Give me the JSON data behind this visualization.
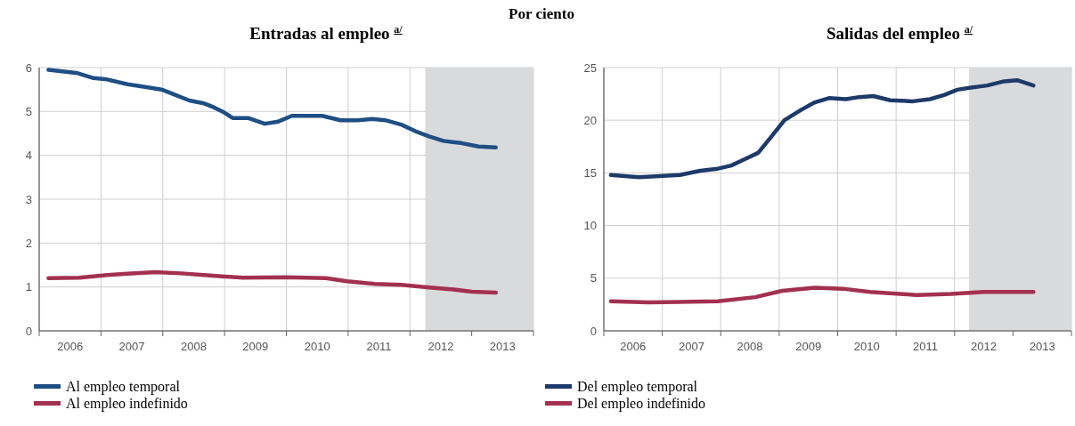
{
  "chart_data": [
    {
      "type": "line",
      "subtitle": "Por ciento",
      "title": "Entradas al empleo $^{a/}$",
      "xlim": [
        2006,
        2014
      ],
      "xticks": [
        {
          "value": 2006,
          "label": null
        },
        {
          "value": 2006.5,
          "label": "2006"
        },
        {
          "value": 2007,
          "label": null
        },
        {
          "value": 2007.5,
          "label": "2007"
        },
        {
          "value": 2008,
          "label": null
        },
        {
          "value": 2008.5,
          "label": "2008"
        },
        {
          "value": 2009,
          "label": null
        },
        {
          "value": 2009.5,
          "label": "2009"
        },
        {
          "value": 2010,
          "label": null
        },
        {
          "value": 2010.5,
          "label": "2010"
        },
        {
          "value": 2011,
          "label": null
        },
        {
          "value": 2011.5,
          "label": "2011"
        },
        {
          "value": 2012,
          "label": null
        },
        {
          "value": 2012.5,
          "label": "2012"
        },
        {
          "value": 2013,
          "label": null
        },
        {
          "value": 2013.5,
          "label": "2013"
        },
        {
          "value": 2014,
          "label": null
        }
      ],
      "ylim": [
        0,
        6
      ],
      "yticks": [
        0,
        1,
        2,
        3,
        4,
        5,
        6
      ],
      "grid": true,
      "legend": "bottom left",
      "marker": "none",
      "line_style": "solid",
      "bands": [
        {
          "axis": "x",
          "from": 2012.25,
          "to": 2014,
          "color": "#d9dadc"
        }
      ],
      "series": [
        {
          "name": "Al empleo temporal",
          "color": "#1f4e85",
          "x": [
            2006.15,
            2006.6,
            2006.88,
            2007.1,
            2007.43,
            2007.76,
            2007.98,
            2008.2,
            2008.43,
            2008.65,
            2008.82,
            2008.99,
            2009.13,
            2009.38,
            2009.65,
            2009.87,
            2010.09,
            2010.26,
            2010.58,
            2010.88,
            2011.16,
            2011.39,
            2011.6,
            2011.86,
            2012.09,
            2012.31,
            2012.54,
            2012.83,
            2013.11,
            2013.39
          ],
          "values": [
            5.95,
            5.88,
            5.76,
            5.73,
            5.62,
            5.55,
            5.5,
            5.38,
            5.25,
            5.19,
            5.1,
            4.98,
            4.85,
            4.85,
            4.72,
            4.77,
            4.9,
            4.9,
            4.9,
            4.8,
            4.8,
            4.83,
            4.8,
            4.7,
            4.55,
            4.43,
            4.33,
            4.28,
            4.2,
            4.18
          ]
        },
        {
          "name": "Al empleo indefinido",
          "color": "#a3304f",
          "x": [
            2006.15,
            2006.65,
            2007.1,
            2007.43,
            2007.87,
            2008.3,
            2008.76,
            2009.3,
            2010.0,
            2010.64,
            2010.98,
            2011.43,
            2011.86,
            2012.31,
            2012.66,
            2013.0,
            2013.39
          ],
          "values": [
            1.2,
            1.21,
            1.27,
            1.3,
            1.34,
            1.31,
            1.26,
            1.21,
            1.22,
            1.2,
            1.13,
            1.07,
            1.05,
            0.99,
            0.95,
            0.89,
            0.87
          ]
        }
      ]
    },
    {
      "type": "line",
      "title": "Salidas del empleo $^{a/}$",
      "xlim": [
        2006,
        2014
      ],
      "xticks": [
        {
          "value": 2006,
          "label": null
        },
        {
          "value": 2006.5,
          "label": "2006"
        },
        {
          "value": 2007,
          "label": null
        },
        {
          "value": 2007.5,
          "label": "2007"
        },
        {
          "value": 2008,
          "label": null
        },
        {
          "value": 2008.5,
          "label": "2008"
        },
        {
          "value": 2009,
          "label": null
        },
        {
          "value": 2009.5,
          "label": "2009"
        },
        {
          "value": 2010,
          "label": null
        },
        {
          "value": 2010.5,
          "label": "2010"
        },
        {
          "value": 2011,
          "label": null
        },
        {
          "value": 2011.5,
          "label": "2011"
        },
        {
          "value": 2012,
          "label": null
        },
        {
          "value": 2012.5,
          "label": "2012"
        },
        {
          "value": 2013,
          "label": null
        },
        {
          "value": 2013.5,
          "label": "2013"
        },
        {
          "value": 2014,
          "label": null
        }
      ],
      "ylim": [
        0,
        25
      ],
      "yticks": [
        0,
        5,
        10,
        15,
        20,
        25
      ],
      "grid": true,
      "legend": "bottom left",
      "marker": "none",
      "line_style": "solid",
      "bands": [
        {
          "axis": "x",
          "from": 2012.25,
          "to": 2014,
          "color": "#d9dadc"
        }
      ],
      "series": [
        {
          "name": "Del empleo temporal",
          "color": "#1d3a68",
          "x": [
            2006.12,
            2006.6,
            2007.3,
            2007.65,
            2007.95,
            2008.18,
            2008.41,
            2008.64,
            2008.86,
            2009.09,
            2009.38,
            2009.61,
            2009.85,
            2010.14,
            2010.37,
            2010.61,
            2010.9,
            2011.29,
            2011.58,
            2011.82,
            2012.05,
            2012.28,
            2012.56,
            2012.85,
            2013.07,
            2013.35
          ],
          "values": [
            14.8,
            14.6,
            14.8,
            15.2,
            15.4,
            15.7,
            16.3,
            16.9,
            18.4,
            20,
            21,
            21.7,
            22.1,
            22,
            22.2,
            22.3,
            21.9,
            21.8,
            22,
            22.4,
            22.9,
            23.1,
            23.3,
            23.7,
            23.8,
            23.3
          ]
        },
        {
          "name": "Del empleo indefinido",
          "color": "#a3304f",
          "x": [
            2006.12,
            2006.76,
            2007.95,
            2008.59,
            2009.05,
            2009.61,
            2010.09,
            2010.55,
            2011.35,
            2011.94,
            2012.5,
            2013.35
          ],
          "values": [
            2.8,
            2.7,
            2.8,
            3.2,
            3.8,
            4.1,
            4,
            3.7,
            3.4,
            3.5,
            3.7,
            3.7
          ]
        }
      ]
    }
  ]
}
